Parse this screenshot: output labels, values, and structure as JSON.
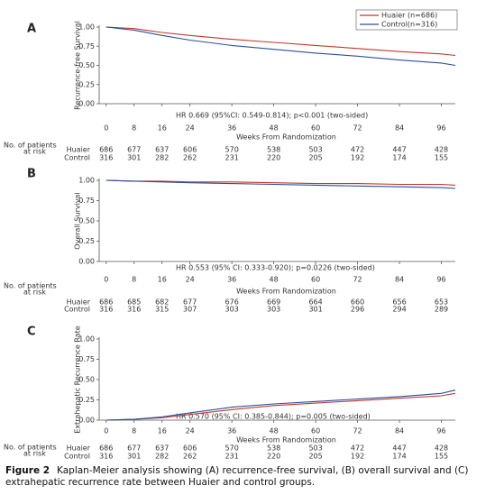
{
  "chart_data": [
    {
      "type": "line",
      "panel": "A",
      "ylabel": "Recurrence-free Survival",
      "xlabel": "Weeks From Randomization",
      "annotation": "HR 0.669 (95%CI: 0.549-0.814); p<0.001 (two-sided)",
      "x": [
        0,
        8,
        16,
        24,
        36,
        48,
        60,
        72,
        84,
        96,
        100
      ],
      "series": [
        {
          "name": "Huaier (n=686)",
          "color": "#c0392b",
          "values": [
            1.0,
            0.98,
            0.93,
            0.89,
            0.84,
            0.8,
            0.76,
            0.72,
            0.68,
            0.65,
            0.63
          ]
        },
        {
          "name": "Control(n=316)",
          "color": "#2c4f9e",
          "values": [
            1.0,
            0.96,
            0.89,
            0.83,
            0.76,
            0.71,
            0.66,
            0.62,
            0.57,
            0.53,
            0.5
          ]
        }
      ],
      "xlim": [
        -2,
        100
      ],
      "xticks": [
        0,
        8,
        16,
        24,
        36,
        48,
        60,
        72,
        84,
        96
      ],
      "ylim": [
        0,
        1
      ],
      "yticks": [
        {
          "value": 0,
          "label": "0.00"
        },
        {
          "value": 0.25,
          "label": "0.25"
        },
        {
          "value": 0.5,
          "label": "0.50"
        },
        {
          "value": 0.75,
          "label": "0.75"
        },
        {
          "value": 1,
          "label": "1.00"
        }
      ],
      "risk_table": {
        "title": "No. of patients",
        "subtitle": "at risk",
        "rows": [
          {
            "name": "Huaier",
            "values": [
              686,
              677,
              637,
              606,
              570,
              538,
              503,
              472,
              447,
              428
            ]
          },
          {
            "name": "Control",
            "values": [
              316,
              301,
              282,
              262,
              231,
              220,
              205,
              192,
              174,
              155
            ]
          }
        ]
      }
    },
    {
      "type": "line",
      "panel": "B",
      "ylabel": "Overall Survival",
      "xlabel": "Weeks From Randomization",
      "annotation": "HR 0.553 (95% CI: 0.333-0.920); p=0.0226 (two-sided)",
      "x": [
        0,
        8,
        16,
        24,
        36,
        48,
        60,
        72,
        84,
        96,
        100
      ],
      "series": [
        {
          "color": "#c0392b",
          "values": [
            1.0,
            0.99,
            0.99,
            0.98,
            0.98,
            0.97,
            0.96,
            0.96,
            0.95,
            0.95,
            0.94
          ]
        },
        {
          "color": "#2c4f9e",
          "values": [
            1.0,
            0.99,
            0.98,
            0.97,
            0.96,
            0.95,
            0.94,
            0.93,
            0.92,
            0.91,
            0.9
          ]
        }
      ],
      "xlim": [
        -2,
        100
      ],
      "xticks": [
        0,
        8,
        16,
        24,
        36,
        48,
        60,
        72,
        84,
        96
      ],
      "ylim": [
        0,
        1
      ],
      "yticks": [
        {
          "value": 0,
          "label": "0.00"
        },
        {
          "value": 0.25,
          "label": "0.25"
        },
        {
          "value": 0.5,
          "label": "0.50"
        },
        {
          "value": 0.75,
          "label": "0.75"
        },
        {
          "value": 1,
          "label": "1.00"
        }
      ],
      "risk_table": {
        "title": "No. of patients",
        "subtitle": "at risk",
        "rows": [
          {
            "name": "Huaier",
            "values": [
              686,
              685,
              682,
              677,
              676,
              669,
              664,
              660,
              656,
              653
            ]
          },
          {
            "name": "Control",
            "values": [
              316,
              316,
              315,
              307,
              303,
              303,
              301,
              296,
              294,
              289
            ]
          }
        ]
      }
    },
    {
      "type": "line",
      "panel": "C",
      "ylabel": "Extrahepatic Recurrence Rate",
      "xlabel": "Weeks From Randomization",
      "annotation": "HR 0.570 (95% CI: 0.385-0.844); p=0.005 (two-sided)",
      "x": [
        0,
        8,
        16,
        24,
        36,
        48,
        60,
        72,
        84,
        96,
        100
      ],
      "series": [
        {
          "color": "#c0392b",
          "values": [
            0,
            0.01,
            0.03,
            0.07,
            0.13,
            0.18,
            0.21,
            0.24,
            0.27,
            0.3,
            0.33
          ]
        },
        {
          "color": "#2c4f9e",
          "values": [
            0,
            0.01,
            0.04,
            0.09,
            0.16,
            0.2,
            0.23,
            0.26,
            0.29,
            0.33,
            0.37
          ]
        }
      ],
      "xlim": [
        -2,
        100
      ],
      "xticks": [
        0,
        8,
        16,
        24,
        36,
        48,
        60,
        72,
        84,
        96
      ],
      "ylim": [
        0,
        1
      ],
      "yticks": [
        {
          "value": 0,
          "label": "0.00"
        },
        {
          "value": 0.25,
          "label": "0.25"
        },
        {
          "value": 0.5,
          "label": "0.50"
        },
        {
          "value": 0.75,
          "label": "0.75"
        },
        {
          "value": 1,
          "label": "1.00"
        }
      ],
      "risk_table": {
        "title": "No. of patients",
        "subtitle": "at risk",
        "rows": [
          {
            "name": "Huaier",
            "values": [
              686,
              677,
              637,
              606,
              570,
              538,
              503,
              472,
              447,
              428
            ]
          },
          {
            "name": "Control",
            "values": [
              316,
              301,
              282,
              262,
              231,
              220,
              205,
              192,
              174,
              155
            ]
          }
        ]
      }
    }
  ],
  "caption": {
    "label": "Figure 2",
    "text": "Kaplan-Meier analysis showing (A) recurrence-free survival, (B) overall survival and (C) extrahepatic recurrence rate between Huaier and control groups."
  }
}
